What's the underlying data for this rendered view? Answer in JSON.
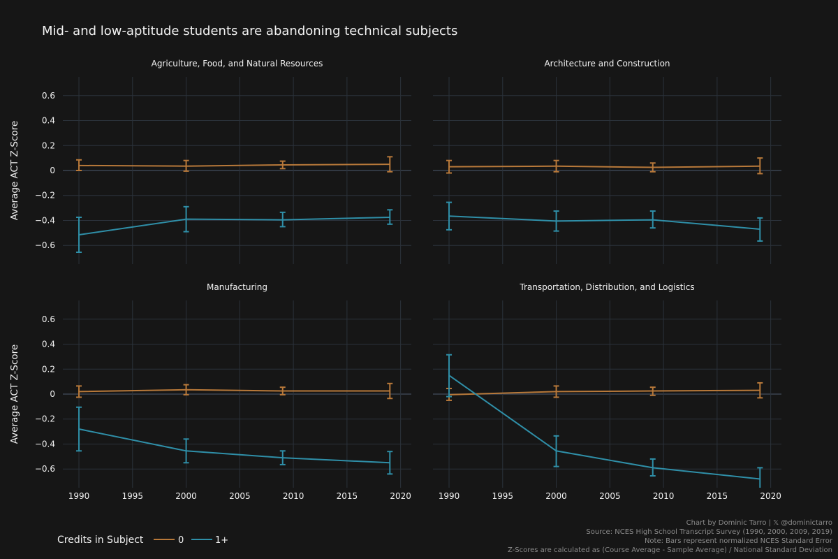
{
  "chart_data": {
    "type": "line",
    "title": "Mid- and low-aptitude students are abandoning technical subjects",
    "ylabel": "Average ACT Z-Score",
    "x": [
      1990,
      2000,
      2009,
      2019
    ],
    "xticks": [
      "1990",
      "1995",
      "2000",
      "2005",
      "2010",
      "2015",
      "2020"
    ],
    "yticks": [
      "0.6",
      "0.4",
      "0.2",
      "0",
      "−0.2",
      "−0.4",
      "−0.6"
    ],
    "xlim": [
      1988.5,
      2021
    ],
    "ylim": [
      -0.75,
      0.75
    ],
    "grid": true,
    "legend": {
      "title": "Credits in Subject",
      "placement": "bottom-left",
      "items": [
        {
          "label": "0",
          "color": "#b8793a"
        },
        {
          "label": "1+",
          "color": "#2f8fa8"
        }
      ]
    },
    "panels": [
      {
        "subtitle": "Agriculture, Food, and Natural Resources",
        "series": [
          {
            "name": "0",
            "values": [
              0.04,
              0.035,
              0.045,
              0.05
            ],
            "lower": [
              0.0,
              -0.005,
              0.015,
              -0.01
            ],
            "upper": [
              0.085,
              0.08,
              0.075,
              0.11
            ]
          },
          {
            "name": "1+",
            "values": [
              -0.515,
              -0.39,
              -0.395,
              -0.375
            ],
            "lower": [
              -0.655,
              -0.49,
              -0.45,
              -0.43
            ],
            "upper": [
              -0.375,
              -0.29,
              -0.335,
              -0.315
            ]
          }
        ]
      },
      {
        "subtitle": "Architecture and Construction",
        "series": [
          {
            "name": "0",
            "values": [
              0.03,
              0.035,
              0.025,
              0.035
            ],
            "lower": [
              -0.02,
              -0.01,
              -0.01,
              -0.025
            ],
            "upper": [
              0.08,
              0.08,
              0.06,
              0.1
            ]
          },
          {
            "name": "1+",
            "values": [
              -0.365,
              -0.405,
              -0.395,
              -0.47
            ],
            "lower": [
              -0.475,
              -0.485,
              -0.46,
              -0.565
            ],
            "upper": [
              -0.255,
              -0.325,
              -0.325,
              -0.38
            ]
          }
        ]
      },
      {
        "subtitle": "Manufacturing",
        "series": [
          {
            "name": "0",
            "values": [
              0.02,
              0.035,
              0.025,
              0.025
            ],
            "lower": [
              -0.025,
              -0.005,
              -0.005,
              -0.035
            ],
            "upper": [
              0.065,
              0.075,
              0.055,
              0.085
            ]
          },
          {
            "name": "1+",
            "values": [
              -0.28,
              -0.455,
              -0.51,
              -0.55
            ],
            "lower": [
              -0.455,
              -0.55,
              -0.565,
              -0.64
            ],
            "upper": [
              -0.105,
              -0.36,
              -0.455,
              -0.46
            ]
          }
        ]
      },
      {
        "subtitle": "Transportation, Distribution, and Logistics",
        "series": [
          {
            "name": "0",
            "values": [
              -0.005,
              0.02,
              0.025,
              0.03
            ],
            "lower": [
              -0.05,
              -0.025,
              -0.01,
              -0.03
            ],
            "upper": [
              0.045,
              0.065,
              0.055,
              0.09
            ]
          },
          {
            "name": "1+",
            "values": [
              0.15,
              -0.455,
              -0.59,
              -0.68
            ],
            "lower": [
              -0.02,
              -0.58,
              -0.655,
              -0.77
            ],
            "upper": [
              0.315,
              -0.335,
              -0.52,
              -0.59
            ]
          }
        ]
      }
    ],
    "annotations": [
      "Chart by Dominic Tarro | 𝕏 @dominictarro",
      "Source: NCES High School Transcript Survey (1990, 2000, 2009, 2019)",
      "Note: Bars represent normalized NCES Standard Error",
      "Z-Scores are calculated as (Course Average - Sample Average) / National Standard Deviation"
    ]
  }
}
